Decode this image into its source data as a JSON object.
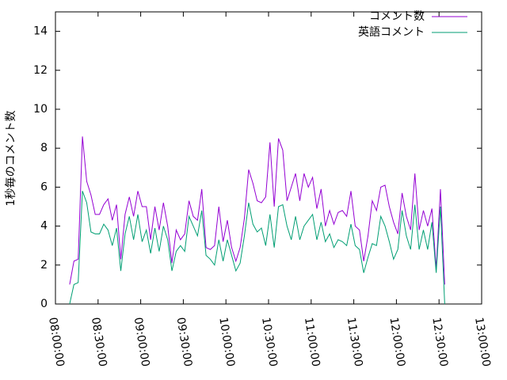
{
  "chart_data": {
    "type": "line",
    "y_label": "1秒毎のコメント数",
    "x": [
      "08:10:00",
      "08:13:00",
      "08:16:00",
      "08:19:00",
      "08:22:00",
      "08:25:00",
      "08:28:00",
      "08:31:00",
      "08:34:00",
      "08:37:00",
      "08:40:00",
      "08:43:00",
      "08:46:00",
      "08:49:00",
      "08:52:00",
      "08:55:00",
      "08:58:00",
      "09:01:00",
      "09:04:00",
      "09:07:00",
      "09:10:00",
      "09:13:00",
      "09:16:00",
      "09:19:00",
      "09:22:00",
      "09:25:00",
      "09:28:00",
      "09:31:00",
      "09:34:00",
      "09:37:00",
      "09:40:00",
      "09:43:00",
      "09:46:00",
      "09:49:00",
      "09:52:00",
      "09:55:00",
      "09:58:00",
      "10:01:00",
      "10:04:00",
      "10:07:00",
      "10:10:00",
      "10:13:00",
      "10:16:00",
      "10:19:00",
      "10:22:00",
      "10:25:00",
      "10:28:00",
      "10:31:00",
      "10:34:00",
      "10:37:00",
      "10:40:00",
      "10:43:00",
      "10:46:00",
      "10:49:00",
      "10:52:00",
      "10:55:00",
      "10:58:00",
      "11:01:00",
      "11:04:00",
      "11:07:00",
      "11:10:00",
      "11:13:00",
      "11:16:00",
      "11:19:00",
      "11:22:00",
      "11:25:00",
      "11:28:00",
      "11:31:00",
      "11:34:00",
      "11:37:00",
      "11:40:00",
      "11:43:00",
      "11:46:00",
      "11:49:00",
      "11:52:00",
      "11:55:00",
      "11:58:00",
      "12:01:00",
      "12:04:00",
      "12:07:00",
      "12:10:00",
      "12:13:00",
      "12:16:00",
      "12:19:00",
      "12:22:00",
      "12:25:00",
      "12:28:00",
      "12:31:00",
      "12:34:00"
    ],
    "series": [
      {
        "name": "コメント数",
        "color": "#9400d3",
        "values": [
          1.0,
          2.2,
          2.3,
          8.6,
          6.3,
          5.6,
          4.6,
          4.6,
          5.1,
          5.4,
          4.3,
          5.1,
          2.3,
          4.6,
          5.5,
          4.5,
          5.8,
          5.0,
          5.0,
          3.3,
          5.0,
          3.8,
          5.2,
          4.0,
          2.1,
          3.8,
          3.3,
          3.6,
          5.3,
          4.5,
          4.3,
          5.9,
          2.9,
          2.8,
          3.0,
          5.0,
          3.2,
          4.3,
          2.9,
          2.2,
          2.9,
          4.4,
          6.9,
          6.2,
          5.3,
          5.2,
          5.5,
          8.3,
          5.0,
          8.5,
          7.9,
          5.3,
          6.0,
          6.7,
          5.3,
          6.7,
          6.0,
          6.5,
          4.9,
          5.9,
          4.0,
          4.8,
          4.1,
          4.7,
          4.8,
          4.5,
          5.8,
          4.0,
          3.8,
          2.2,
          3.5,
          5.3,
          4.8,
          6.0,
          6.1,
          5.0,
          4.2,
          3.6,
          5.7,
          4.5,
          3.8,
          6.7,
          3.8,
          4.8,
          4.0,
          4.9,
          1.8,
          5.9,
          1.0
        ]
      },
      {
        "name": "英語コメント",
        "color": "#009e73",
        "values": [
          0.0,
          1.0,
          1.1,
          5.8,
          5.2,
          3.7,
          3.6,
          3.6,
          4.1,
          3.8,
          3.0,
          3.9,
          1.7,
          3.6,
          4.5,
          3.3,
          4.6,
          3.2,
          3.8,
          2.6,
          3.9,
          2.7,
          4.0,
          3.3,
          1.7,
          2.7,
          3.0,
          2.7,
          4.5,
          4.0,
          3.5,
          4.8,
          2.5,
          2.3,
          2.0,
          3.3,
          2.2,
          3.3,
          2.5,
          1.7,
          2.1,
          3.5,
          5.2,
          4.1,
          3.7,
          3.9,
          3.0,
          4.6,
          2.9,
          5.0,
          5.1,
          4.0,
          3.3,
          4.5,
          3.3,
          4.0,
          4.3,
          4.6,
          3.3,
          4.2,
          3.2,
          3.6,
          2.9,
          3.3,
          3.2,
          3.0,
          4.1,
          3.0,
          2.8,
          1.6,
          2.4,
          3.1,
          3.0,
          4.5,
          4.0,
          3.2,
          2.3,
          2.8,
          4.8,
          3.5,
          2.8,
          5.1,
          2.8,
          3.8,
          2.8,
          4.2,
          1.6,
          5.0,
          0.0
        ]
      }
    ],
    "xlim": [
      "08:00:00",
      "13:00:00"
    ],
    "xticks": [
      "08:00:00",
      "08:30:00",
      "09:00:00",
      "09:30:00",
      "10:00:00",
      "10:30:00",
      "11:00:00",
      "11:30:00",
      "12:00:00",
      "12:30:00",
      "13:00:00"
    ],
    "ylim": [
      0,
      15
    ],
    "yticks": [
      0,
      2,
      4,
      6,
      8,
      10,
      12,
      14
    ],
    "grid": false,
    "legend": "top-right"
  }
}
